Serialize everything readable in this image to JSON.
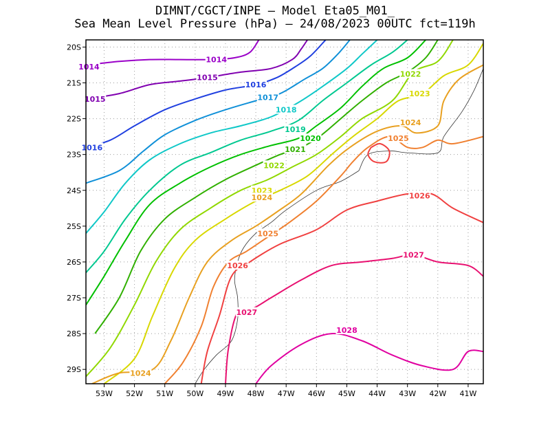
{
  "title": {
    "line1": "DIMNT/CGCT/INPE –  Model Eta05_M01_",
    "line2": "Sea Mean Level Pressure (hPa) – 24/08/2023 00UTC fct=119h"
  },
  "map": {
    "lon_range": [
      -53.6,
      -40.5
    ],
    "lat_range": [
      -29.4,
      -19.8
    ],
    "lon_ticks": [
      {
        "value": -53,
        "label": "53W"
      },
      {
        "value": -52,
        "label": "52W"
      },
      {
        "value": -51,
        "label": "51W"
      },
      {
        "value": -50,
        "label": "50W"
      },
      {
        "value": -49,
        "label": "49W"
      },
      {
        "value": -48,
        "label": "48W"
      },
      {
        "value": -47,
        "label": "47W"
      },
      {
        "value": -46,
        "label": "46W"
      },
      {
        "value": -45,
        "label": "45W"
      },
      {
        "value": -44,
        "label": "44W"
      },
      {
        "value": -43,
        "label": "43W"
      },
      {
        "value": -42,
        "label": "42W"
      },
      {
        "value": -41,
        "label": "41W"
      }
    ],
    "lat_ticks": [
      {
        "value": -20,
        "label": "20S"
      },
      {
        "value": -21,
        "label": "21S"
      },
      {
        "value": -22,
        "label": "22S"
      },
      {
        "value": -23,
        "label": "23S"
      },
      {
        "value": -24,
        "label": "24S"
      },
      {
        "value": -25,
        "label": "25S"
      },
      {
        "value": -26,
        "label": "26S"
      },
      {
        "value": -27,
        "label": "27S"
      },
      {
        "value": -28,
        "label": "28S"
      },
      {
        "value": -29,
        "label": "29S"
      }
    ],
    "grid": "dotted",
    "coastline": [
      [
        -44.6,
        -23.45
      ],
      [
        -45.2,
        -23.75
      ],
      [
        -46.0,
        -24.0
      ],
      [
        -47.0,
        -24.55
      ],
      [
        -47.5,
        -24.9
      ],
      [
        -48.0,
        -25.2
      ],
      [
        -48.4,
        -25.6
      ],
      [
        -48.6,
        -26.0
      ],
      [
        -48.7,
        -26.5
      ],
      [
        -48.6,
        -27.0
      ],
      [
        -48.6,
        -27.6
      ],
      [
        -48.8,
        -28.2
      ],
      [
        -49.3,
        -28.6
      ],
      [
        -49.7,
        -29.0
      ],
      [
        -50.0,
        -29.4
      ]
    ],
    "coastline_north": [
      [
        -44.6,
        -23.45
      ],
      [
        -44.3,
        -23.0
      ],
      [
        -43.6,
        -22.9
      ],
      [
        -43.0,
        -22.95
      ],
      [
        -42.0,
        -22.95
      ],
      [
        -41.8,
        -22.5
      ],
      [
        -41.2,
        -21.8
      ],
      [
        -40.8,
        -21.2
      ],
      [
        -40.5,
        -20.6
      ]
    ]
  },
  "contours": [
    {
      "value": 1014,
      "label": "1014",
      "color": "#9a00c8",
      "points": [
        [
          -53.6,
          -20.5
        ],
        [
          -52.5,
          -20.4
        ],
        [
          -51.5,
          -20.35
        ],
        [
          -50.5,
          -20.35
        ],
        [
          -49.5,
          -20.35
        ],
        [
          -48.7,
          -20.3
        ],
        [
          -48.2,
          -20.15
        ],
        [
          -47.9,
          -19.8
        ]
      ],
      "labels": [
        {
          "text": "1014",
          "at": [
            -53.5,
            -20.55
          ]
        },
        {
          "text": "1014",
          "at": [
            -49.3,
            -20.35
          ]
        }
      ]
    },
    {
      "value": 1015,
      "label": "1015",
      "color": "#8000b0",
      "points": [
        [
          -53.6,
          -21.45
        ],
        [
          -52.5,
          -21.3
        ],
        [
          -51.5,
          -21.05
        ],
        [
          -50.5,
          -20.95
        ],
        [
          -49.6,
          -20.85
        ],
        [
          -48.5,
          -20.7
        ],
        [
          -47.5,
          -20.6
        ],
        [
          -46.8,
          -20.35
        ],
        [
          -46.5,
          -20.05
        ],
        [
          -46.3,
          -19.8
        ]
      ],
      "labels": [
        {
          "text": "1015",
          "at": [
            -53.3,
            -21.45
          ]
        },
        {
          "text": "1015",
          "at": [
            -49.6,
            -20.85
          ]
        }
      ]
    },
    {
      "value": 1016,
      "label": "1016",
      "color": "#2040e0",
      "points": [
        [
          -53.6,
          -22.8
        ],
        [
          -52.8,
          -22.6
        ],
        [
          -52.0,
          -22.2
        ],
        [
          -51.0,
          -21.75
        ],
        [
          -50.0,
          -21.45
        ],
        [
          -49.0,
          -21.2
        ],
        [
          -48.0,
          -21.05
        ],
        [
          -47.3,
          -20.85
        ],
        [
          -46.7,
          -20.55
        ],
        [
          -46.2,
          -20.25
        ],
        [
          -45.7,
          -19.8
        ]
      ],
      "labels": [
        {
          "text": "1016",
          "at": [
            -53.4,
            -22.8
          ]
        },
        {
          "text": "1016",
          "at": [
            -48.0,
            -21.05
          ]
        }
      ]
    },
    {
      "value": 1017,
      "label": "1017",
      "color": "#1090d8",
      "points": [
        [
          -53.6,
          -23.8
        ],
        [
          -52.5,
          -23.45
        ],
        [
          -51.7,
          -22.9
        ],
        [
          -51.0,
          -22.45
        ],
        [
          -50.0,
          -22.05
        ],
        [
          -49.0,
          -21.75
        ],
        [
          -48.0,
          -21.5
        ],
        [
          -47.2,
          -21.3
        ],
        [
          -46.4,
          -20.9
        ],
        [
          -45.8,
          -20.6
        ],
        [
          -45.3,
          -20.2
        ],
        [
          -44.9,
          -19.8
        ]
      ],
      "labels": [
        {
          "text": "1017",
          "at": [
            -47.6,
            -21.4
          ]
        }
      ]
    },
    {
      "value": 1018,
      "label": "1018",
      "color": "#10c8c8",
      "points": [
        [
          -53.6,
          -25.2
        ],
        [
          -53.0,
          -24.6
        ],
        [
          -52.3,
          -23.8
        ],
        [
          -51.5,
          -23.15
        ],
        [
          -50.5,
          -22.7
        ],
        [
          -49.5,
          -22.4
        ],
        [
          -48.5,
          -22.2
        ],
        [
          -47.5,
          -21.95
        ],
        [
          -46.6,
          -21.55
        ],
        [
          -45.8,
          -21.1
        ],
        [
          -45.0,
          -20.6
        ],
        [
          -44.5,
          -20.2
        ],
        [
          -44.0,
          -19.8
        ]
      ],
      "labels": [
        {
          "text": "1018",
          "at": [
            -47.0,
            -21.75
          ]
        }
      ]
    },
    {
      "value": 1019,
      "label": "1019",
      "color": "#00c890",
      "points": [
        [
          -53.6,
          -26.3
        ],
        [
          -53.0,
          -25.7
        ],
        [
          -52.3,
          -24.8
        ],
        [
          -51.5,
          -24.0
        ],
        [
          -50.5,
          -23.3
        ],
        [
          -49.5,
          -22.95
        ],
        [
          -48.5,
          -22.6
        ],
        [
          -47.5,
          -22.35
        ],
        [
          -46.6,
          -22.05
        ],
        [
          -45.8,
          -21.5
        ],
        [
          -45.0,
          -21.0
        ],
        [
          -44.2,
          -20.5
        ],
        [
          -43.5,
          -20.15
        ],
        [
          -43.0,
          -19.8
        ]
      ],
      "labels": [
        {
          "text": "1019",
          "at": [
            -46.7,
            -22.3
          ]
        }
      ]
    },
    {
      "value": 1020,
      "label": "1020",
      "color": "#00c000",
      "points": [
        [
          -53.6,
          -27.2
        ],
        [
          -53.0,
          -26.4
        ],
        [
          -52.3,
          -25.4
        ],
        [
          -51.5,
          -24.4
        ],
        [
          -50.5,
          -23.8
        ],
        [
          -49.5,
          -23.35
        ],
        [
          -48.5,
          -23.0
        ],
        [
          -47.5,
          -22.75
        ],
        [
          -46.6,
          -22.55
        ],
        [
          -46.0,
          -22.2
        ],
        [
          -45.2,
          -21.7
        ],
        [
          -44.5,
          -21.1
        ],
        [
          -43.8,
          -20.6
        ],
        [
          -43.0,
          -20.3
        ],
        [
          -42.4,
          -19.8
        ]
      ],
      "labels": [
        {
          "text": "1020",
          "at": [
            -46.2,
            -22.55
          ]
        }
      ]
    },
    {
      "value": 1021,
      "label": "1021",
      "color": "#30b000",
      "points": [
        [
          -53.3,
          -28.0
        ],
        [
          -52.5,
          -27.0
        ],
        [
          -51.8,
          -25.7
        ],
        [
          -51.0,
          -24.8
        ],
        [
          -50.0,
          -24.2
        ],
        [
          -49.0,
          -23.7
        ],
        [
          -48.0,
          -23.3
        ],
        [
          -47.2,
          -23.0
        ],
        [
          -46.5,
          -22.8
        ],
        [
          -45.9,
          -22.5
        ],
        [
          -45.2,
          -22.0
        ],
        [
          -44.5,
          -21.5
        ],
        [
          -43.7,
          -21.0
        ],
        [
          -43.0,
          -20.7
        ],
        [
          -42.4,
          -20.3
        ],
        [
          -42.0,
          -19.8
        ]
      ],
      "labels": [
        {
          "text": "1021",
          "at": [
            -46.7,
            -22.85
          ]
        }
      ]
    },
    {
      "value": 1022,
      "label": "1022",
      "color": "#90d800",
      "points": [
        [
          -53.6,
          -29.2
        ],
        [
          -52.8,
          -28.4
        ],
        [
          -52.0,
          -27.2
        ],
        [
          -51.3,
          -26.0
        ],
        [
          -50.5,
          -25.1
        ],
        [
          -49.5,
          -24.5
        ],
        [
          -48.5,
          -24.0
        ],
        [
          -47.6,
          -23.7
        ],
        [
          -46.8,
          -23.35
        ],
        [
          -46.0,
          -23.0
        ],
        [
          -45.2,
          -22.5
        ],
        [
          -44.5,
          -22.0
        ],
        [
          -43.5,
          -21.5
        ],
        [
          -42.8,
          -20.7
        ],
        [
          -42.0,
          -20.4
        ],
        [
          -41.5,
          -19.8
        ]
      ],
      "labels": [
        {
          "text": "1022",
          "at": [
            -47.4,
            -23.3
          ]
        },
        {
          "text": "1022",
          "at": [
            -42.9,
            -20.75
          ]
        }
      ]
    },
    {
      "value": 1023,
      "label": "1023",
      "color": "#d8d800",
      "points": [
        [
          -53.0,
          -29.4
        ],
        [
          -52.0,
          -28.7
        ],
        [
          -51.4,
          -27.5
        ],
        [
          -50.7,
          -26.2
        ],
        [
          -50.0,
          -25.4
        ],
        [
          -49.0,
          -24.8
        ],
        [
          -48.0,
          -24.3
        ],
        [
          -47.2,
          -24.0
        ],
        [
          -46.3,
          -23.6
        ],
        [
          -45.5,
          -23.0
        ],
        [
          -44.8,
          -22.5
        ],
        [
          -44.0,
          -22.0
        ],
        [
          -43.3,
          -21.5
        ],
        [
          -42.5,
          -21.3
        ],
        [
          -41.8,
          -20.8
        ],
        [
          -41.0,
          -20.5
        ],
        [
          -40.5,
          -19.9
        ]
      ],
      "labels": [
        {
          "text": "1023",
          "at": [
            -47.8,
            -24.0
          ]
        },
        {
          "text": "1023",
          "at": [
            -42.6,
            -21.3
          ]
        }
      ]
    },
    {
      "value": 1024,
      "label": "1024",
      "color": "#e8a020",
      "points": [
        [
          -53.4,
          -29.4
        ],
        [
          -52.5,
          -29.1
        ],
        [
          -51.4,
          -29.0
        ],
        [
          -50.8,
          -28.2
        ],
        [
          -50.2,
          -27.0
        ],
        [
          -49.6,
          -26.0
        ],
        [
          -48.8,
          -25.4
        ],
        [
          -48.0,
          -25.0
        ],
        [
          -47.3,
          -24.6
        ],
        [
          -46.5,
          -24.1
        ],
        [
          -45.6,
          -23.3
        ],
        [
          -44.9,
          -22.8
        ],
        [
          -44.0,
          -22.35
        ],
        [
          -43.2,
          -22.2
        ],
        [
          -42.7,
          -22.4
        ],
        [
          -42.0,
          -22.2
        ],
        [
          -41.8,
          -21.5
        ],
        [
          -41.3,
          -20.9
        ],
        [
          -40.5,
          -20.5
        ]
      ],
      "labels": [
        {
          "text": "1024",
          "at": [
            -51.8,
            -29.1
          ]
        },
        {
          "text": "1024",
          "at": [
            -47.8,
            -24.2
          ]
        },
        {
          "text": "1024",
          "at": [
            -42.9,
            -22.1
          ]
        }
      ]
    },
    {
      "value": 1025,
      "label": "1025",
      "color": "#f08030",
      "points": [
        [
          -51.0,
          -29.4
        ],
        [
          -50.4,
          -28.8
        ],
        [
          -49.8,
          -27.8
        ],
        [
          -49.4,
          -26.7
        ],
        [
          -48.9,
          -26.0
        ],
        [
          -48.3,
          -25.7
        ],
        [
          -47.6,
          -25.3
        ],
        [
          -46.9,
          -24.9
        ],
        [
          -46.0,
          -24.3
        ],
        [
          -45.2,
          -23.6
        ],
        [
          -44.8,
          -23.2
        ],
        [
          -44.3,
          -22.8
        ],
        [
          -43.6,
          -22.5
        ],
        [
          -43.0,
          -22.8
        ],
        [
          -42.5,
          -22.8
        ],
        [
          -42.0,
          -22.6
        ],
        [
          -41.5,
          -22.7
        ],
        [
          -40.5,
          -22.5
        ]
      ],
      "labels": [
        {
          "text": "1025",
          "at": [
            -47.6,
            -25.2
          ]
        },
        {
          "text": "1025",
          "at": [
            -43.3,
            -22.55
          ]
        }
      ]
    },
    {
      "value": 1026,
      "label": "1026",
      "color": "#f04040",
      "points": [
        [
          -49.8,
          -29.4
        ],
        [
          -49.6,
          -28.5
        ],
        [
          -49.2,
          -27.5
        ],
        [
          -48.8,
          -26.4
        ],
        [
          -48.2,
          -26.0
        ],
        [
          -47.2,
          -25.5
        ],
        [
          -46.0,
          -25.1
        ],
        [
          -45.0,
          -24.55
        ],
        [
          -44.0,
          -24.3
        ],
        [
          -43.0,
          -24.1
        ],
        [
          -42.2,
          -24.1
        ],
        [
          -41.5,
          -24.5
        ],
        [
          -40.5,
          -24.9
        ]
      ],
      "labels": [
        {
          "text": "1026",
          "at": [
            -48.6,
            -26.1
          ]
        },
        {
          "text": "1026",
          "at": [
            -42.6,
            -24.15
          ]
        }
      ]
    },
    {
      "value": 1027,
      "label": "1027",
      "color": "#e81070",
      "points": [
        [
          -49.0,
          -29.4
        ],
        [
          -48.9,
          -28.4
        ],
        [
          -48.6,
          -27.4
        ],
        [
          -48.1,
          -27.3
        ],
        [
          -47.5,
          -27.0
        ],
        [
          -46.5,
          -26.5
        ],
        [
          -45.5,
          -26.1
        ],
        [
          -44.5,
          -26.0
        ],
        [
          -43.5,
          -25.9
        ],
        [
          -42.8,
          -25.8
        ],
        [
          -42.0,
          -26.0
        ],
        [
          -41.0,
          -26.1
        ],
        [
          -40.5,
          -26.4
        ]
      ],
      "labels": [
        {
          "text": "1027",
          "at": [
            -48.3,
            -27.4
          ]
        },
        {
          "text": "1027",
          "at": [
            -42.8,
            -25.8
          ]
        }
      ]
    },
    {
      "value": 1028,
      "label": "1028",
      "color": "#e000a0",
      "points": [
        [
          -48.0,
          -29.4
        ],
        [
          -47.5,
          -28.9
        ],
        [
          -46.5,
          -28.3
        ],
        [
          -45.5,
          -28.0
        ],
        [
          -44.5,
          -28.2
        ],
        [
          -43.5,
          -28.6
        ],
        [
          -42.5,
          -28.9
        ],
        [
          -41.5,
          -29.0
        ],
        [
          -41.0,
          -28.5
        ],
        [
          -40.5,
          -28.5
        ]
      ],
      "labels": [
        {
          "text": "1028",
          "at": [
            -45.0,
            -27.9
          ]
        }
      ]
    },
    {
      "value": 1026.5,
      "label": "",
      "color": "#f04040",
      "points": [
        [
          -44.2,
          -22.8
        ],
        [
          -43.9,
          -22.7
        ],
        [
          -43.6,
          -22.9
        ],
        [
          -43.7,
          -23.2
        ],
        [
          -44.1,
          -23.2
        ],
        [
          -44.3,
          -23.0
        ],
        [
          -44.2,
          -22.8
        ]
      ],
      "labels": []
    }
  ]
}
